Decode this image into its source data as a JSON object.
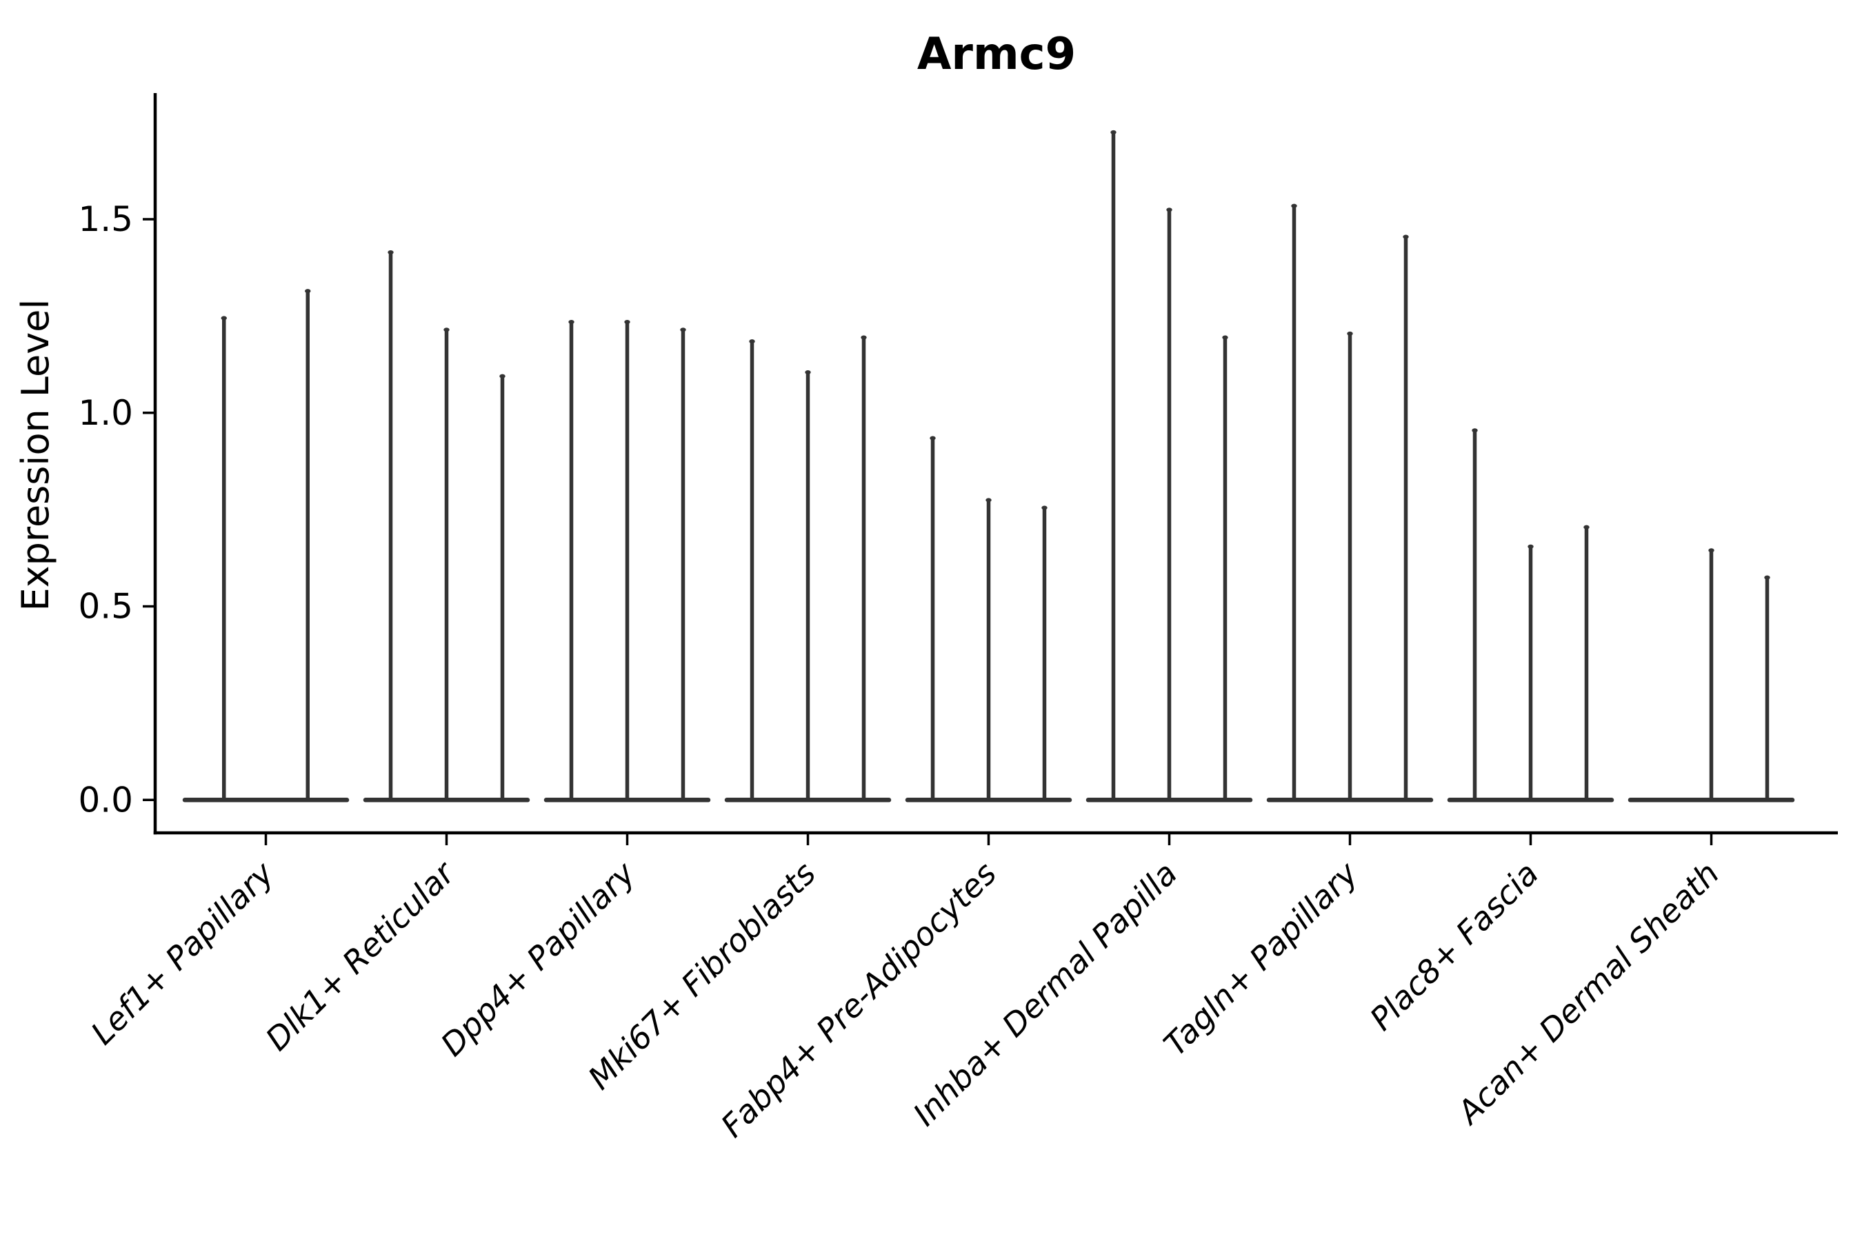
{
  "figure": {
    "background": "#ffffff",
    "axis_color": "#000000",
    "violin_color": "#333333"
  },
  "chart_data": {
    "type": "violin",
    "title": "Armc9",
    "ylabel": "Expression Level",
    "xlabel": "",
    "grid": false,
    "legend": false,
    "ylim": [
      -0.085,
      1.826
    ],
    "yticks": [
      {
        "value": 0.0,
        "label": "0.0"
      },
      {
        "value": 0.5,
        "label": "0.5"
      },
      {
        "value": 1.0,
        "label": "1.0"
      },
      {
        "value": 1.5,
        "label": "1.5"
      }
    ],
    "categories": [
      "Lef1+ Papillary",
      "Dlk1+ Reticular",
      "Dpp4+ Papillary",
      "Mki67+ Fibroblasts",
      "Fabp4+ Pre-Adipocytes",
      "Inhba+ Dermal Papilla",
      "Tagln+ Papillary",
      "Plac8+ Fascia",
      "Acan+ Dermal Sheath"
    ],
    "groups": [
      {
        "category": "Lef1+ Papillary",
        "violins": [
          {
            "slot": 0.25,
            "max": 1.25
          },
          {
            "slot": 0.75,
            "max": 1.32
          }
        ]
      },
      {
        "category": "Dlk1+ Reticular",
        "violins": [
          {
            "slot": 0.1667,
            "max": 1.42
          },
          {
            "slot": 0.5,
            "max": 1.22
          },
          {
            "slot": 0.8333,
            "max": 1.1
          }
        ]
      },
      {
        "category": "Dpp4+ Papillary",
        "violins": [
          {
            "slot": 0.1667,
            "max": 1.24
          },
          {
            "slot": 0.5,
            "max": 1.24
          },
          {
            "slot": 0.8333,
            "max": 1.22
          }
        ]
      },
      {
        "category": "Mki67+ Fibroblasts",
        "violins": [
          {
            "slot": 0.1667,
            "max": 1.19
          },
          {
            "slot": 0.5,
            "max": 1.11
          },
          {
            "slot": 0.8333,
            "max": 1.2
          }
        ]
      },
      {
        "category": "Fabp4+ Pre-Adipocytes",
        "violins": [
          {
            "slot": 0.1667,
            "max": 0.94
          },
          {
            "slot": 0.5,
            "max": 0.78
          },
          {
            "slot": 0.8333,
            "max": 0.76
          }
        ]
      },
      {
        "category": "Inhba+ Dermal Papilla",
        "violins": [
          {
            "slot": 0.1667,
            "max": 1.73
          },
          {
            "slot": 0.5,
            "max": 1.53
          },
          {
            "slot": 0.8333,
            "max": 1.2
          }
        ]
      },
      {
        "category": "Tagln+ Papillary",
        "violins": [
          {
            "slot": 0.1667,
            "max": 1.54
          },
          {
            "slot": 0.5,
            "max": 1.21
          },
          {
            "slot": 0.8333,
            "max": 1.46
          }
        ]
      },
      {
        "category": "Plac8+ Fascia",
        "violins": [
          {
            "slot": 0.1667,
            "max": 0.96
          },
          {
            "slot": 0.5,
            "max": 0.66
          },
          {
            "slot": 0.8333,
            "max": 0.71
          }
        ]
      },
      {
        "category": "Acan+ Dermal Sheath",
        "violins": [
          {
            "slot": 0.1667,
            "max": 0.0
          },
          {
            "slot": 0.5,
            "max": 0.65
          },
          {
            "slot": 0.8333,
            "max": 0.58
          }
        ]
      }
    ]
  }
}
